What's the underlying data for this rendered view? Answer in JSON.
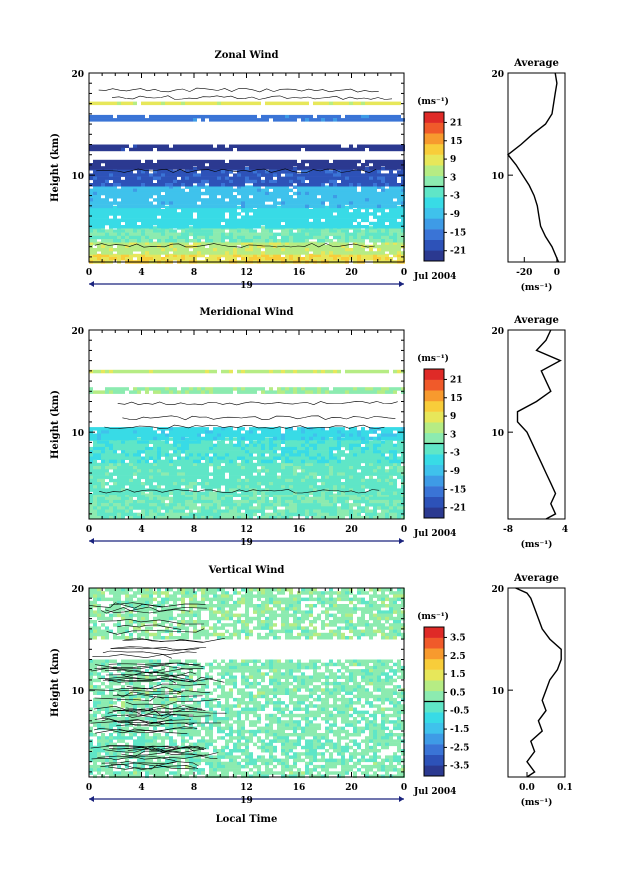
{
  "figure": {
    "xlabel_bottom": "Local Time",
    "x_ticks": [
      "0",
      "4",
      "8",
      "12",
      "16",
      "20",
      "0"
    ],
    "day_label": "19",
    "month_label": "Jul 2004",
    "ylabel": "Height (km)",
    "y_ticks": [
      "10",
      "20"
    ],
    "colorbar_unit": "(ms⁻¹)",
    "avg_title": "Average",
    "avg_unit": "(ms⁻¹)"
  },
  "chart_data": [
    {
      "type": "heatmap",
      "title": "Zonal Wind",
      "ylabel": "Height (km)",
      "xlim": [
        0,
        24
      ],
      "ylim": [
        1.5,
        20
      ],
      "colorbar": {
        "ticks": [
          "21",
          "15",
          "9",
          "3",
          "-3",
          "-9",
          "-15",
          "-21"
        ],
        "range": [
          -24,
          24
        ]
      },
      "bands": [
        {
          "h0": 1.5,
          "h1": 2.3,
          "value": 10
        },
        {
          "h0": 2.3,
          "h1": 3.5,
          "value": 6
        },
        {
          "h0": 3.5,
          "h1": 5.0,
          "value": 0
        },
        {
          "h0": 5.0,
          "h1": 7.0,
          "value": -5
        },
        {
          "h0": 7.0,
          "h1": 9.0,
          "value": -9
        },
        {
          "h0": 9.0,
          "h1": 10.8,
          "value": -18
        },
        {
          "h0": 10.8,
          "h1": 11.5,
          "value": -22
        },
        {
          "h0": 12.5,
          "h1": 13.0,
          "value": -22
        },
        {
          "h0": 15.5,
          "h1": 15.9,
          "value": -15
        },
        {
          "h0": 17.0,
          "h1": 17.2,
          "value": 8
        }
      ],
      "average_profile": {
        "xlim": [
          -30,
          5
        ],
        "x_ticks": [
          "-20",
          "0"
        ],
        "height": [
          1.5,
          3,
          4,
          5,
          6,
          7,
          8,
          9,
          10,
          11,
          12,
          13,
          14,
          15,
          16,
          17,
          18,
          19,
          20
        ],
        "u": [
          1,
          -3,
          -7,
          -10,
          -11,
          -12,
          -14,
          -17,
          -21,
          -25,
          -30,
          -22,
          -15,
          -7,
          -3,
          -2,
          -1,
          0,
          -1
        ]
      }
    },
    {
      "type": "heatmap",
      "title": "Meridional Wind",
      "ylabel": "Height (km)",
      "xlim": [
        0,
        24
      ],
      "ylim": [
        1.5,
        20
      ],
      "colorbar": {
        "ticks": [
          "21",
          "15",
          "9",
          "3",
          "-3",
          "-9",
          "-15",
          "-21"
        ],
        "range": [
          -24,
          24
        ]
      },
      "bands": [
        {
          "h0": 1.5,
          "h1": 4.0,
          "value": 0
        },
        {
          "h0": 4.0,
          "h1": 7.0,
          "value": -1
        },
        {
          "h0": 7.0,
          "h1": 9.5,
          "value": -3
        },
        {
          "h0": 9.5,
          "h1": 10.5,
          "value": -6
        },
        {
          "h0": 14.0,
          "h1": 14.4,
          "value": 3
        },
        {
          "h0": 15.8,
          "h1": 16.1,
          "value": 6
        }
      ],
      "average_profile": {
        "xlim": [
          -8,
          4
        ],
        "x_ticks": [
          "-8",
          "4"
        ],
        "height": [
          1.5,
          2,
          3,
          4,
          5,
          6,
          7,
          8,
          9,
          10,
          11,
          12,
          13,
          14,
          15,
          16,
          17,
          18,
          19,
          20
        ],
        "v": [
          0,
          2,
          1,
          2,
          1,
          0,
          -1,
          -2,
          -3,
          -4,
          -6,
          -6,
          -2,
          1,
          0,
          -1,
          3,
          -2,
          0,
          1
        ]
      }
    },
    {
      "type": "heatmap",
      "title": "Vertical Wind",
      "ylabel": "Height (km)",
      "xlim": [
        0,
        24
      ],
      "ylim": [
        1.5,
        20
      ],
      "colorbar": {
        "ticks": [
          "3.5",
          "2.5",
          "1.5",
          "0.5",
          "-0.5",
          "-1.5",
          "-2.5",
          "-3.5"
        ],
        "range": [
          -4,
          4
        ]
      },
      "bands": [
        {
          "h0": 1.5,
          "h1": 3.0,
          "value": 0.2
        },
        {
          "h0": 3.0,
          "h1": 8.0,
          "value": 0.1
        },
        {
          "h0": 8.0,
          "h1": 13.0,
          "value": 0.2
        },
        {
          "h0": 15.0,
          "h1": 20.0,
          "value": 0.3
        }
      ],
      "average_profile": {
        "xlim": [
          -0.05,
          0.1
        ],
        "x_ticks": [
          "0.0",
          "0.1"
        ],
        "height": [
          1.5,
          2,
          3,
          4,
          5,
          6,
          7,
          8,
          9,
          10,
          11,
          12,
          13,
          14,
          15,
          16,
          17,
          18,
          19,
          19.5,
          20
        ],
        "w": [
          0.0,
          0.02,
          0.0,
          0.02,
          0.01,
          0.04,
          0.03,
          0.05,
          0.04,
          0.05,
          0.06,
          0.08,
          0.09,
          0.09,
          0.06,
          0.04,
          0.03,
          0.02,
          0.01,
          0.0,
          -0.03
        ]
      }
    }
  ]
}
